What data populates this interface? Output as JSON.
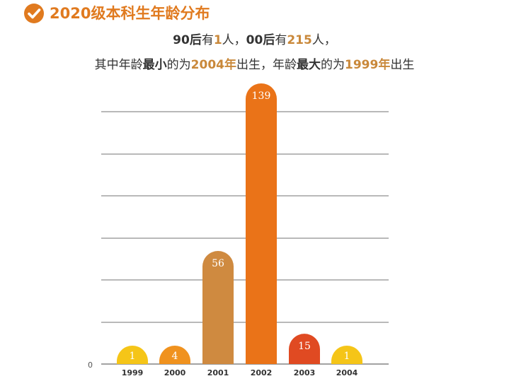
{
  "header": {
    "title": "2020级本科生年龄分布",
    "icon": "check-circle-icon",
    "accent_color": "#E07A1F"
  },
  "summary": {
    "line1": [
      {
        "text": "90后",
        "style": "bold"
      },
      {
        "text": "有",
        "style": "normal"
      },
      {
        "text": "1",
        "style": "highlight"
      },
      {
        "text": "人，",
        "style": "normal"
      },
      {
        "text": "00后",
        "style": "bold"
      },
      {
        "text": "有",
        "style": "normal"
      },
      {
        "text": "215",
        "style": "highlight"
      },
      {
        "text": "人，",
        "style": "normal"
      }
    ],
    "line2": [
      {
        "text": "其中年龄",
        "style": "normal"
      },
      {
        "text": "最小",
        "style": "bold"
      },
      {
        "text": "的为",
        "style": "normal"
      },
      {
        "text": "2004年",
        "style": "highlight"
      },
      {
        "text": "出生，年龄",
        "style": "normal"
      },
      {
        "text": "最大",
        "style": "bold"
      },
      {
        "text": "的为",
        "style": "normal"
      },
      {
        "text": "1999年",
        "style": "highlight"
      },
      {
        "text": "出生",
        "style": "normal"
      }
    ],
    "highlight_color": "#C9883A"
  },
  "chart_data": {
    "type": "bar",
    "categories": [
      "1999",
      "2000",
      "2001",
      "2002",
      "2003",
      "2004"
    ],
    "values": [
      1,
      4,
      56,
      139,
      15,
      1
    ],
    "colors": [
      "#F5C518",
      "#F0921E",
      "#CF8A40",
      "#EA7318",
      "#E04A22",
      "#F5C518"
    ],
    "ylim": [
      0,
      139
    ],
    "y_tick_labels": [
      "0"
    ],
    "grid": true,
    "data_labels": true,
    "title": "",
    "xlabel": "",
    "ylabel": ""
  }
}
